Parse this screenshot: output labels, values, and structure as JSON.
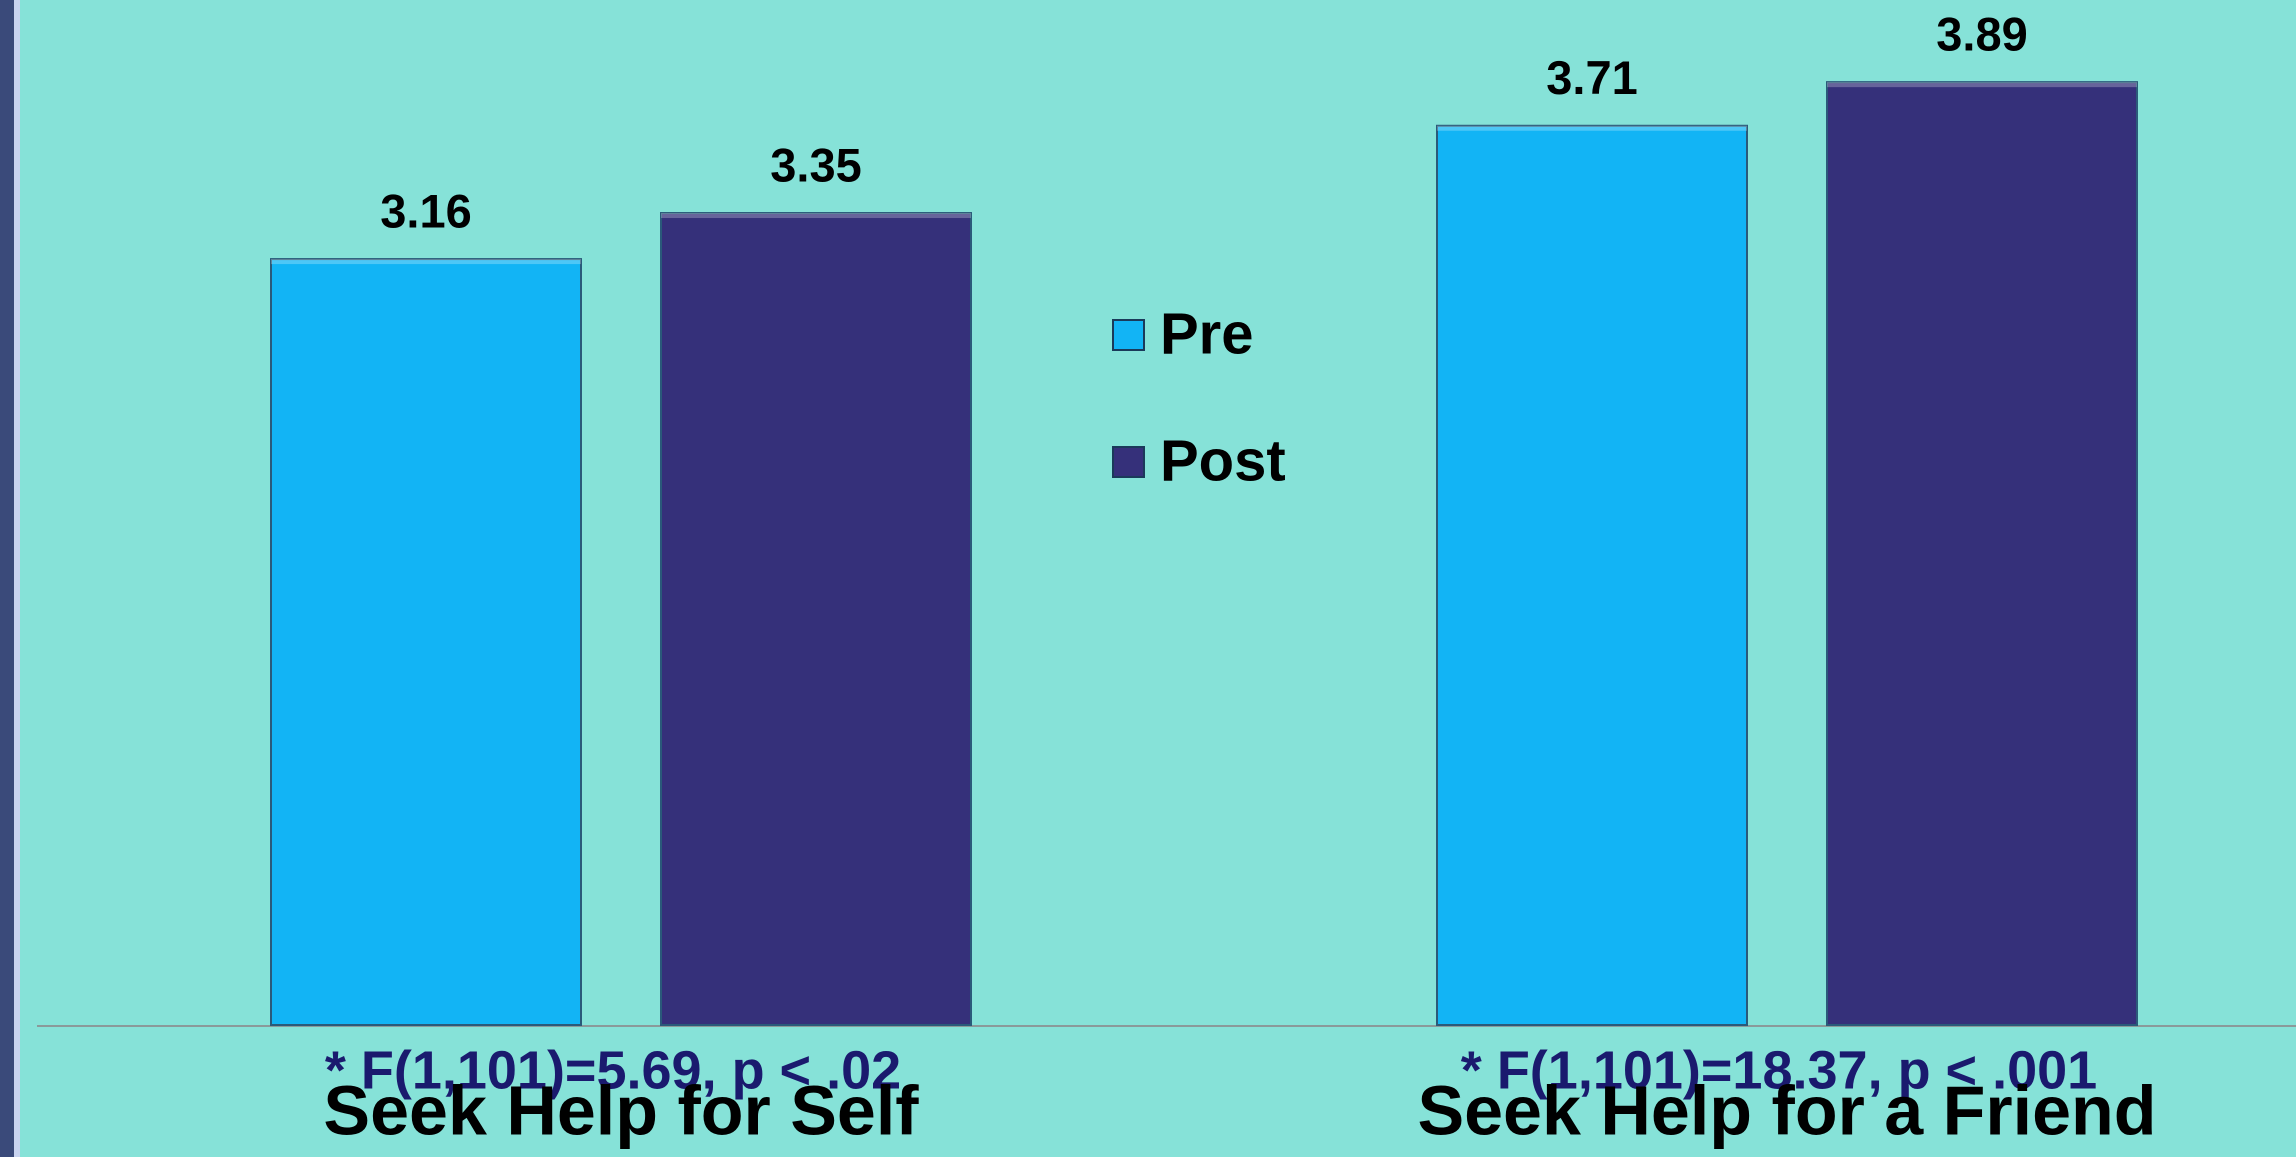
{
  "chart_data": {
    "type": "bar",
    "categories": [
      "Seek Help for Self",
      "Seek Help for a Friend"
    ],
    "series": [
      {
        "name": "Pre",
        "color": "#12b4f5",
        "values": [
          3.16,
          3.71
        ]
      },
      {
        "name": "Post",
        "color": "#35307a",
        "values": [
          3.35,
          3.89
        ]
      }
    ],
    "annotations": [
      "* F(1,101)=5.69, p < .02",
      "* F(1,101)=18.37, p < .001"
    ],
    "ylim": [
      0,
      4.2
    ],
    "legend": "center"
  }
}
